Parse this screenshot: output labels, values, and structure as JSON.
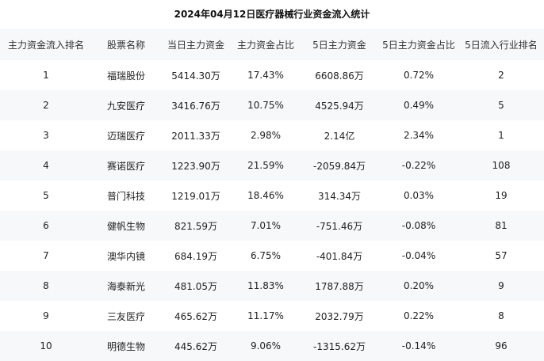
{
  "title": "2024年04月12日医疗器械行业资金流入统计",
  "columns": [
    "主力资金流入排名",
    "股票名称",
    "当日主力资金",
    "主力资金占比",
    "5日主力资金",
    "5日主力资金占比",
    "5日流入行业排名"
  ],
  "rows": [
    [
      "1",
      "福瑞股份",
      "5414.30万",
      "17.43%",
      "6608.86万",
      "0.72%",
      "2"
    ],
    [
      "2",
      "九安医疗",
      "3416.76万",
      "10.75%",
      "4525.94万",
      "0.49%",
      "5"
    ],
    [
      "3",
      "迈瑞医疗",
      "2011.33万",
      "2.98%",
      "2.14亿",
      "2.34%",
      "1"
    ],
    [
      "4",
      "赛诺医疗",
      "1223.90万",
      "21.59%",
      "-2059.84万",
      "-0.22%",
      "108"
    ],
    [
      "5",
      "普门科技",
      "1219.01万",
      "18.46%",
      "314.34万",
      "0.03%",
      "19"
    ],
    [
      "6",
      "健帆生物",
      "821.59万",
      "7.01%",
      "-751.46万",
      "-0.08%",
      "81"
    ],
    [
      "7",
      "澳华内镜",
      "684.19万",
      "6.75%",
      "-401.84万",
      "-0.04%",
      "57"
    ],
    [
      "8",
      "海泰新光",
      "481.05万",
      "11.83%",
      "1787.88万",
      "0.20%",
      "9"
    ],
    [
      "9",
      "三友医疗",
      "465.62万",
      "11.17%",
      "2032.79万",
      "0.22%",
      "8"
    ],
    [
      "10",
      "明德生物",
      "445.62万",
      "9.06%",
      "-1315.62万",
      "-0.14%",
      "96"
    ]
  ]
}
